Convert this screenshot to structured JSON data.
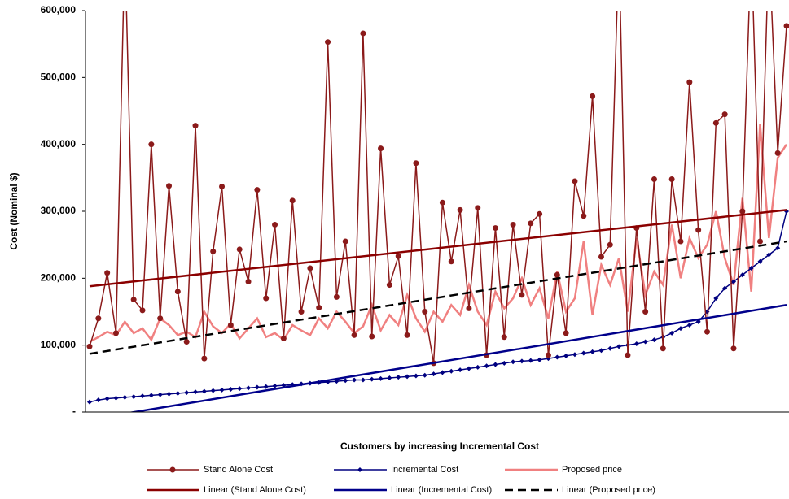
{
  "chart_data": {
    "type": "line",
    "y_label": "Cost (Nominal $)",
    "x_label": "Customers by increasing Incremental Cost",
    "ylim": [
      0,
      600000
    ],
    "yticks": [
      {
        "value": 0,
        "label": "-"
      },
      {
        "value": 100000,
        "label": "100,000"
      },
      {
        "value": 200000,
        "label": "200,000"
      },
      {
        "value": 300000,
        "label": "300,000"
      },
      {
        "value": 400000,
        "label": "400,000"
      },
      {
        "value": 500000,
        "label": "500,000"
      },
      {
        "value": 600000,
        "label": "600,000"
      }
    ],
    "series": [
      {
        "name": "Stand Alone Cost",
        "color": "#8b1a1a",
        "marker": "circle",
        "values": [
          98000,
          140000,
          208000,
          118000,
          700000,
          168000,
          152000,
          400000,
          140000,
          338000,
          180000,
          105000,
          428000,
          80000,
          240000,
          337000,
          130000,
          243000,
          195000,
          332000,
          170000,
          280000,
          110000,
          316000,
          150000,
          215000,
          156000,
          553000,
          172000,
          255000,
          115000,
          566000,
          113000,
          394000,
          190000,
          233000,
          115000,
          372000,
          150000,
          73000,
          313000,
          225000,
          302000,
          155000,
          305000,
          85000,
          275000,
          112000,
          280000,
          175000,
          282000,
          296000,
          85000,
          205000,
          118000,
          345000,
          293000,
          472000,
          232000,
          250000,
          700000,
          85000,
          275000,
          150000,
          348000,
          95000,
          348000,
          255000,
          493000,
          272000,
          120000,
          432000,
          445000,
          95000,
          300000,
          700000,
          255000,
          700000,
          387000,
          577000
        ]
      },
      {
        "name": "Incremental Cost",
        "color": "#000080",
        "marker": "diamond",
        "values": [
          15000,
          18000,
          20000,
          21000,
          22000,
          23000,
          24000,
          25000,
          26000,
          27000,
          28000,
          29000,
          30000,
          31000,
          32000,
          33000,
          34000,
          35000,
          36000,
          37000,
          38000,
          39000,
          40000,
          41000,
          42000,
          43000,
          44000,
          45000,
          46000,
          47000,
          48000,
          48000,
          49000,
          50000,
          51000,
          52000,
          53000,
          54000,
          55000,
          57000,
          59000,
          61000,
          63000,
          65000,
          67000,
          69000,
          71000,
          73000,
          75000,
          76000,
          77000,
          78000,
          80000,
          82000,
          84000,
          86000,
          88000,
          90000,
          92000,
          95000,
          98000,
          100000,
          102000,
          105000,
          108000,
          112000,
          118000,
          125000,
          130000,
          135000,
          150000,
          170000,
          185000,
          195000,
          205000,
          215000,
          225000,
          235000,
          245000,
          300000
        ]
      },
      {
        "name": "Proposed price",
        "color": "#f08080",
        "marker": "none",
        "values": [
          105000,
          112000,
          120000,
          115000,
          135000,
          118000,
          125000,
          108000,
          140000,
          130000,
          115000,
          120000,
          112000,
          150000,
          128000,
          118000,
          132000,
          110000,
          125000,
          140000,
          112000,
          118000,
          108000,
          130000,
          122000,
          115000,
          140000,
          125000,
          150000,
          135000,
          118000,
          128000,
          160000,
          122000,
          145000,
          130000,
          175000,
          140000,
          120000,
          150000,
          135000,
          160000,
          145000,
          190000,
          150000,
          130000,
          180000,
          155000,
          170000,
          200000,
          160000,
          185000,
          140000,
          210000,
          150000,
          170000,
          255000,
          145000,
          220000,
          190000,
          230000,
          150000,
          260000,
          175000,
          210000,
          190000,
          280000,
          200000,
          260000,
          230000,
          250000,
          300000,
          230000,
          190000,
          320000,
          180000,
          430000,
          260000,
          380000,
          400000
        ]
      }
    ],
    "trendlines": [
      {
        "name": "Linear (Stand Alone Cost)",
        "color": "#8b0000",
        "dash": false,
        "values": [
          188000,
          302000
        ]
      },
      {
        "name": "Linear (Incremental Cost)",
        "color": "#00008b",
        "dash": false,
        "values": [
          -11000,
          160000
        ]
      },
      {
        "name": "Linear (Proposed price)",
        "color": "#000000",
        "dash": true,
        "values": [
          87000,
          255000
        ]
      }
    ]
  }
}
